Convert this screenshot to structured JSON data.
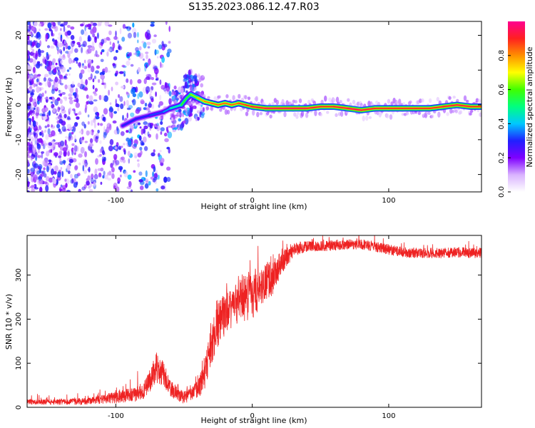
{
  "title": "S135.2023.086.12.47.R03",
  "chart_data": [
    {
      "type": "heatmap",
      "xlabel": "Height of straight line (km)",
      "ylabel": "Frequency (Hz)",
      "xlim": [
        -165,
        168
      ],
      "ylim": [
        -25,
        24
      ],
      "x_ticks": [
        -100,
        0,
        100
      ],
      "y_ticks": [
        -20,
        -10,
        0,
        10,
        20
      ],
      "colorbar": {
        "label": "Normalized spectral amplitude",
        "range": [
          0.0,
          1.0
        ],
        "ticks": [
          0.0,
          0.2,
          0.4,
          0.6,
          0.8
        ],
        "tick_labels": [
          "0.0",
          "0.2",
          "0.4",
          "0.6",
          "0.8"
        ],
        "colors": [
          "#ffffff",
          "#d9b3ff",
          "#7f00ff",
          "#2020ff",
          "#00c8ff",
          "#00ff80",
          "#40ff00",
          "#ffff00",
          "#ff9000",
          "#ff2020",
          "#ff0090"
        ]
      },
      "ridge": {
        "x": [
          -95,
          -85,
          -75,
          -65,
          -60,
          -52,
          -48,
          -45,
          -40,
          -35,
          -30,
          -25,
          -20,
          -15,
          -10,
          -5,
          0,
          10,
          20,
          30,
          40,
          50,
          60,
          70,
          80,
          90,
          100,
          110,
          120,
          130,
          140,
          150,
          160,
          168
        ],
        "freq": [
          -6,
          -4,
          -3,
          -2,
          -1,
          0,
          2,
          3,
          2,
          1,
          0.5,
          0,
          0.5,
          0,
          0.5,
          0,
          -0.5,
          -1,
          -1,
          -1,
          -1,
          -0.5,
          -0.5,
          -1,
          -1.5,
          -1,
          -1,
          -1,
          -1,
          -1,
          -0.5,
          0,
          -0.5,
          -0.5
        ],
        "amplitude": [
          0.3,
          0.3,
          0.3,
          0.35,
          0.4,
          0.55,
          0.6,
          0.55,
          0.75,
          0.8,
          0.85,
          0.85,
          0.85,
          0.85,
          0.85,
          0.9,
          0.9,
          0.95,
          0.95,
          0.95,
          0.95,
          0.9,
          0.9,
          0.95,
          0.95,
          0.9,
          0.9,
          0.9,
          0.9,
          0.9,
          0.9,
          0.95,
          0.9,
          0.9
        ]
      }
    },
    {
      "type": "line",
      "xlabel": "Height of straight line (km)",
      "ylabel": "SNR (10 * v/v)",
      "xlim": [
        -165,
        168
      ],
      "ylim": [
        0,
        390
      ],
      "x_ticks": [
        -100,
        0,
        100
      ],
      "y_ticks": [
        0,
        100,
        200,
        300
      ],
      "color": "#ee2222",
      "series": [
        {
          "x": [
            -165,
            -140,
            -120,
            -110,
            -100,
            -90,
            -80,
            -75,
            -70,
            -65,
            -62,
            -60,
            -55,
            -50,
            -45,
            -40,
            -35,
            -30,
            -25,
            -20,
            -15,
            -10,
            -5,
            0,
            5,
            10,
            15,
            20,
            25,
            30,
            35,
            40,
            50,
            60,
            70,
            80,
            90,
            100,
            110,
            120,
            130,
            140,
            150,
            160,
            168
          ],
          "y": [
            12,
            12,
            14,
            18,
            22,
            28,
            35,
            60,
            90,
            75,
            60,
            45,
            30,
            22,
            30,
            40,
            75,
            140,
            190,
            210,
            220,
            245,
            250,
            255,
            270,
            285,
            295,
            320,
            340,
            355,
            362,
            365,
            365,
            368,
            370,
            370,
            365,
            358,
            352,
            350,
            350,
            350,
            352,
            350,
            350
          ],
          "noise": [
            6,
            6,
            8,
            10,
            14,
            16,
            18,
            26,
            36,
            30,
            24,
            20,
            16,
            14,
            16,
            22,
            40,
            45,
            50,
            50,
            45,
            55,
            55,
            55,
            50,
            45,
            40,
            30,
            22,
            16,
            14,
            12,
            12,
            12,
            12,
            12,
            12,
            12,
            12,
            12,
            12,
            12,
            12,
            12,
            12
          ]
        }
      ]
    }
  ]
}
